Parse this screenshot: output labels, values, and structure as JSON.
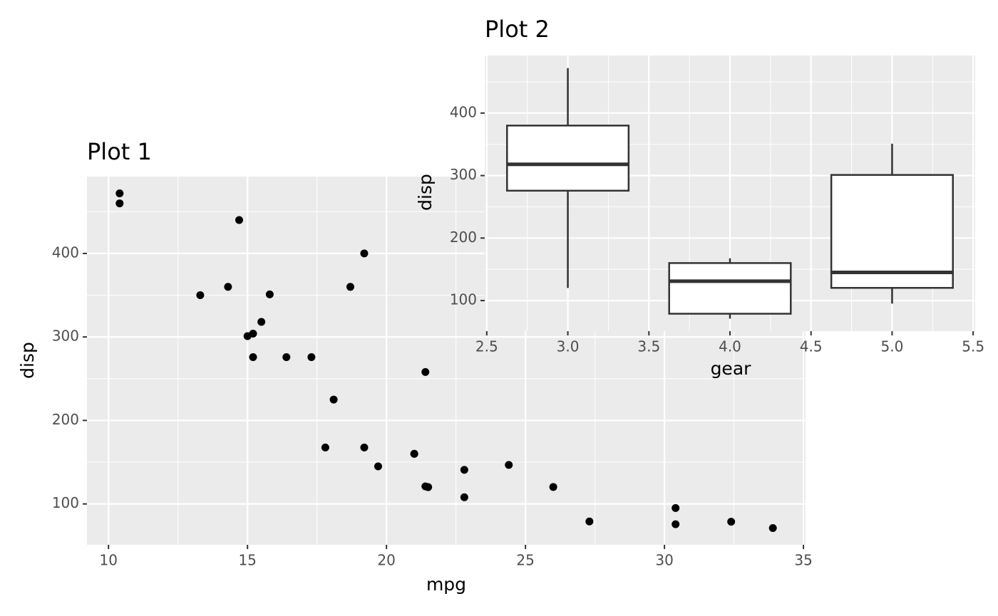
{
  "chart_data": [
    {
      "type": "scatter",
      "title": "Plot 1",
      "xlabel": "mpg",
      "ylabel": "disp",
      "x": [
        21,
        21,
        22.8,
        21.4,
        18.7,
        18.1,
        14.3,
        24.4,
        22.8,
        19.2,
        17.8,
        16.4,
        17.3,
        15.2,
        10.4,
        10.4,
        14.7,
        32.4,
        30.4,
        33.9,
        21.5,
        15.5,
        15.2,
        13.3,
        19.2,
        27.3,
        26,
        30.4,
        15.8,
        19.7,
        15,
        21.4
      ],
      "values": [
        160,
        160,
        108,
        258,
        360,
        225,
        360,
        146.7,
        140.8,
        167.6,
        167.6,
        275.8,
        275.8,
        275.8,
        472,
        460,
        440,
        78.7,
        75.7,
        71.1,
        120.1,
        318,
        304,
        350,
        400,
        79,
        120.3,
        95.1,
        351,
        145,
        301,
        121
      ],
      "color": "#000000",
      "xlim": [
        9.225,
        35.075
      ],
      "xticks": [
        10,
        15,
        20,
        25,
        30,
        35
      ],
      "ylim": [
        51.055,
        492.045
      ],
      "yticks": [
        100,
        200,
        300,
        400
      ],
      "grid": true
    },
    {
      "type": "box",
      "title": "Plot 2",
      "xlabel": "gear",
      "ylabel": "disp",
      "x": [
        3,
        4,
        5
      ],
      "min": [
        120.1,
        71.1,
        95.1
      ],
      "q1": [
        275.8,
        78.925,
        120.3
      ],
      "median": [
        318,
        130.9,
        145
      ],
      "q3": [
        380,
        160,
        301
      ],
      "max": [
        472,
        167.6,
        351
      ],
      "color": "#333333",
      "xlim": [
        2.4875,
        5.5125
      ],
      "xticks": [
        2.5,
        {
          "value": 3,
          "label": "3.0"
        },
        3.5,
        {
          "value": 4,
          "label": "4.0"
        },
        4.5,
        {
          "value": 5,
          "label": "5.0"
        },
        5.5
      ],
      "ylim": [
        51.055,
        492.045
      ],
      "yticks": [
        100,
        200,
        300,
        400
      ],
      "grid": true
    }
  ]
}
